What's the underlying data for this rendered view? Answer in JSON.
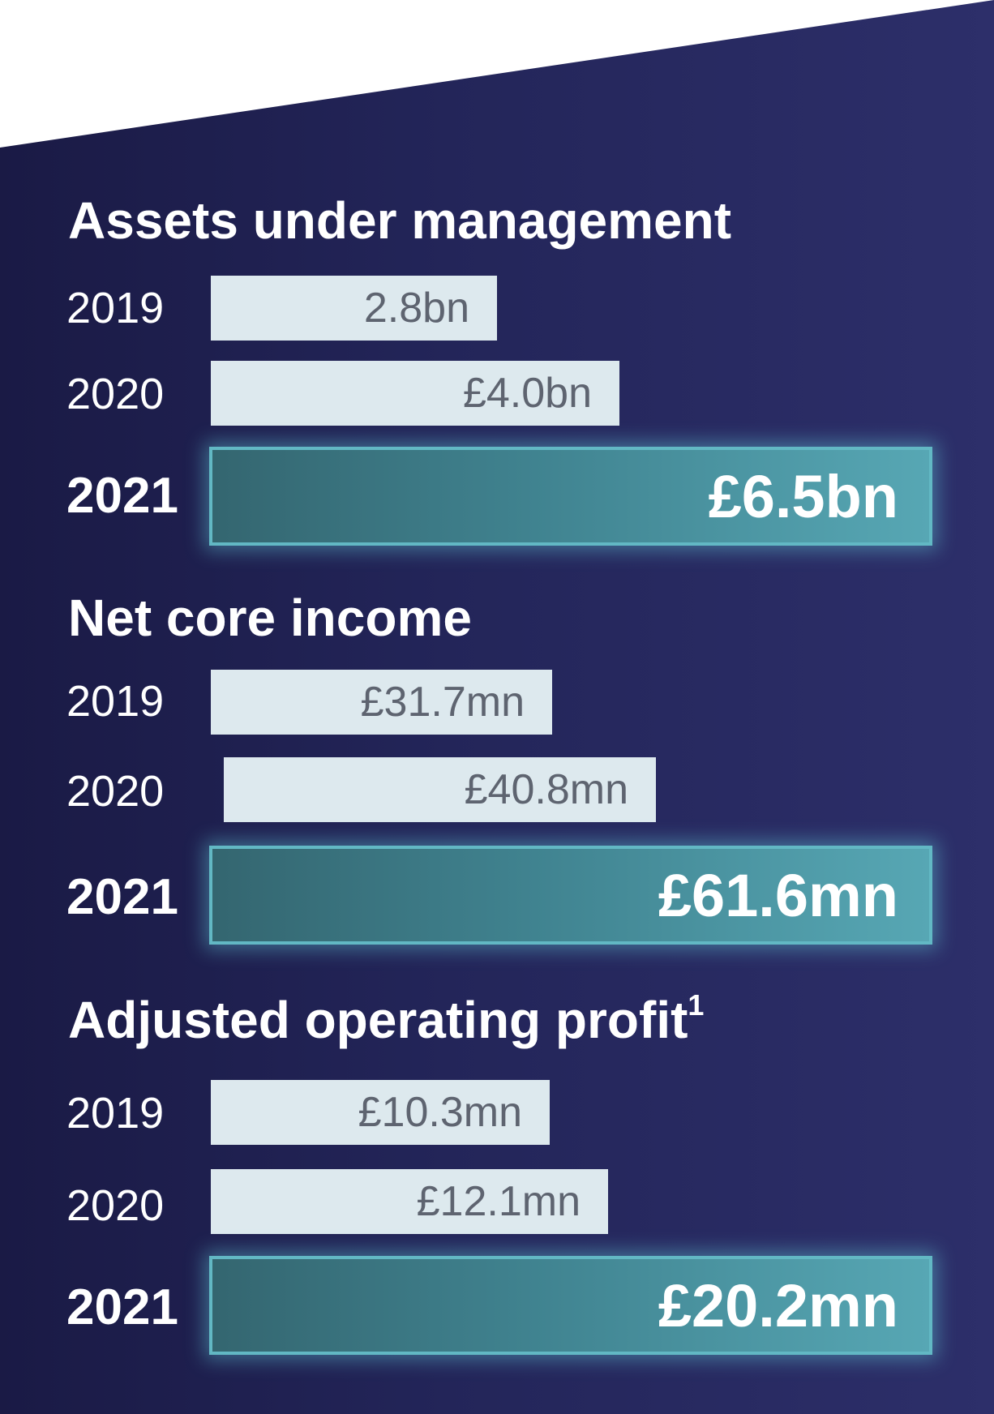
{
  "chart_data": [
    {
      "type": "bar",
      "title": "Assets under management",
      "unit": "£bn",
      "categories": [
        "2019",
        "2020",
        "2021"
      ],
      "values": [
        2.8,
        4.0,
        6.5
      ],
      "labels": [
        "2.8bn",
        "£4.0bn",
        "£6.5bn"
      ],
      "highlight": "2021"
    },
    {
      "type": "bar",
      "title": "Net core income",
      "unit": "£mn",
      "categories": [
        "2019",
        "2020",
        "2021"
      ],
      "values": [
        31.7,
        40.8,
        61.6
      ],
      "labels": [
        "£31.7mn",
        "£40.8mn",
        "£61.6mn"
      ],
      "highlight": "2021"
    },
    {
      "type": "bar",
      "title": "Adjusted operating profit",
      "title_superscript": "1",
      "unit": "£mn",
      "categories": [
        "2019",
        "2020",
        "2021"
      ],
      "values": [
        10.3,
        12.1,
        20.2
      ],
      "labels": [
        "£10.3mn",
        "£12.1mn",
        "£20.2mn"
      ],
      "highlight": "2021"
    }
  ],
  "colors": {
    "panel_background": "#232559",
    "prior_year_bar": "#dde9ee",
    "prior_year_label": "#5e6470",
    "current_year_bar": "#408390",
    "current_year_border": "#62b8c4",
    "text": "#ffffff"
  }
}
